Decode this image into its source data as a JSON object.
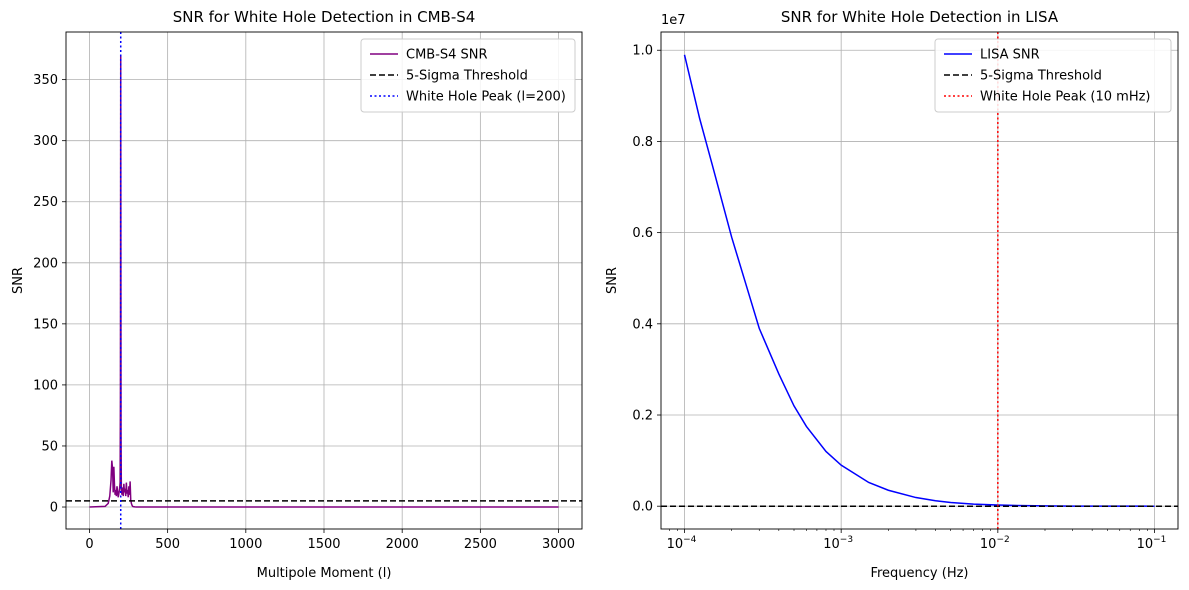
{
  "chart_data": [
    {
      "type": "line",
      "title": "SNR for White Hole Detection in CMB-S4",
      "xlabel": "Multipole Moment (l)",
      "ylabel": "SNR",
      "xscale": "linear",
      "xlim": [
        -150,
        3150
      ],
      "ylim": [
        -18,
        389
      ],
      "xticks": [
        0,
        500,
        1000,
        1500,
        2000,
        2500,
        3000
      ],
      "xtick_labels": [
        "0",
        "500",
        "1000",
        "1500",
        "2000",
        "2500",
        "3000"
      ],
      "yticks": [
        0,
        50,
        100,
        150,
        200,
        250,
        300,
        350
      ],
      "ytick_labels": [
        "0",
        "50",
        "100",
        "150",
        "200",
        "250",
        "300",
        "350"
      ],
      "grid": true,
      "legend_position": "top-right",
      "series": [
        {
          "name": "CMB-S4 SNR",
          "kind": "line",
          "color": "#800080",
          "style": "solid",
          "x": [
            0,
            100,
            120,
            130,
            138,
            143,
            148,
            152,
            156,
            160,
            164,
            168,
            172,
            176,
            180,
            184,
            188,
            192,
            196,
            198,
            200,
            202,
            204,
            208,
            212,
            216,
            220,
            224,
            228,
            232,
            236,
            240,
            244,
            248,
            252,
            256,
            260,
            264,
            268,
            272,
            276,
            280,
            290,
            300,
            350,
            500,
            1000,
            2000,
            3000
          ],
          "y": [
            0,
            0.5,
            3,
            9,
            22,
            38,
            31,
            12,
            33,
            18,
            10,
            14,
            9,
            17,
            13,
            8,
            11,
            14,
            20,
            90,
            370,
            60,
            14,
            10,
            16,
            9,
            19,
            12,
            15,
            9,
            20,
            11,
            14,
            8,
            17,
            10,
            21,
            6,
            3,
            1.5,
            0.6,
            0.3,
            0.1,
            0,
            0,
            0,
            0,
            0,
            0
          ]
        },
        {
          "name": "5-Sigma Threshold",
          "kind": "hline",
          "value": 5,
          "color": "#000000",
          "style": "dashed"
        },
        {
          "name": "White Hole Peak (l=200)",
          "kind": "vline",
          "value": 200,
          "color": "#0000ff",
          "style": "dotted"
        }
      ]
    },
    {
      "type": "line",
      "title": "SNR for White Hole Detection in LISA",
      "xlabel": "Frequency (Hz)",
      "ylabel": "SNR",
      "xscale": "log",
      "xlim": [
        7.0795e-05,
        0.14125
      ],
      "ylim": [
        -0.05,
        1.04
      ],
      "y_multiplier_label": "1e7",
      "xticks": [
        0.0001,
        0.001,
        0.01,
        0.1
      ],
      "xtick_labels": [
        "10",
        "10",
        "10",
        "10"
      ],
      "xtick_exponents": [
        "−4",
        "−3",
        "−2",
        "−1"
      ],
      "yticks": [
        0.0,
        0.2,
        0.4,
        0.6,
        0.8,
        1.0
      ],
      "ytick_labels": [
        "0.0",
        "0.2",
        "0.4",
        "0.6",
        "0.8",
        "1.0"
      ],
      "grid": true,
      "legend_position": "top-right",
      "series": [
        {
          "name": "LISA SNR",
          "kind": "line",
          "color": "#0000ff",
          "style": "solid",
          "x": [
            0.0001,
            0.000125,
            0.00015,
            0.0002,
            0.00025,
            0.0003,
            0.0004,
            0.0005,
            0.0006,
            0.0008,
            0.001,
            0.0015,
            0.002,
            0.003,
            0.004,
            0.005,
            0.007,
            0.01,
            0.015,
            0.02,
            0.03,
            0.05,
            0.07,
            0.1
          ],
          "y": [
            0.99,
            0.85,
            0.75,
            0.59,
            0.48,
            0.39,
            0.29,
            0.22,
            0.175,
            0.12,
            0.09,
            0.052,
            0.035,
            0.019,
            0.012,
            0.008,
            0.0045,
            0.0025,
            0.0012,
            0.0007,
            0.0003,
            0.0001,
            5e-05,
            2e-05
          ]
        },
        {
          "name": "5-Sigma Threshold",
          "kind": "hline",
          "value": 0,
          "color": "#000000",
          "style": "dashed"
        },
        {
          "name": "White Hole Peak (10 mHz)",
          "kind": "vline",
          "value": 0.01,
          "color": "#ff0000",
          "style": "dotted"
        }
      ]
    }
  ]
}
